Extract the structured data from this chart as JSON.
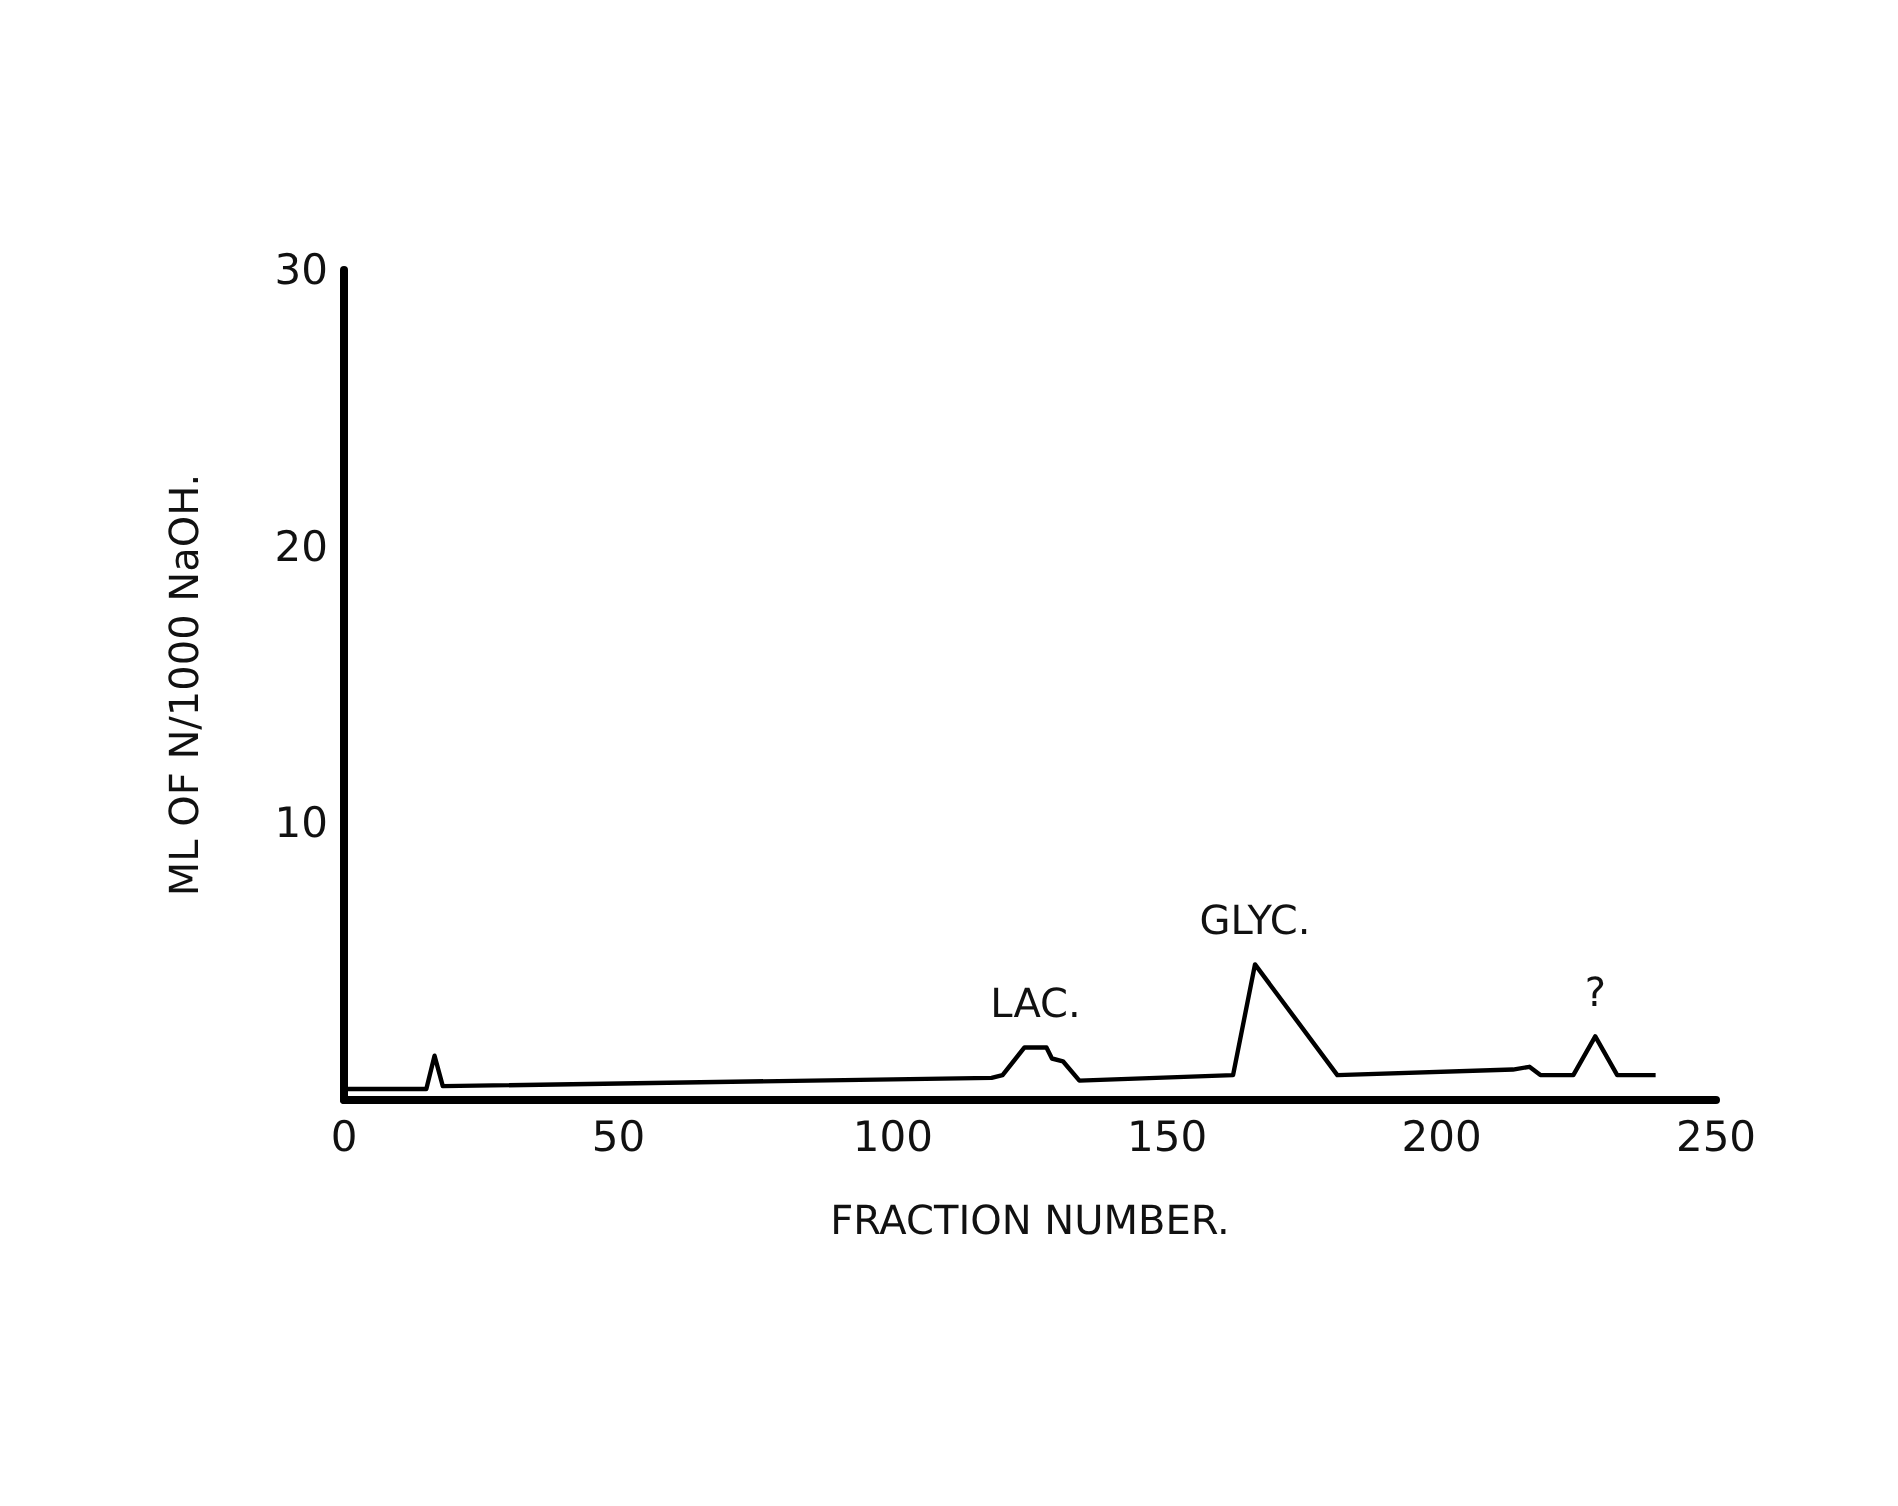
{
  "chart_data": {
    "type": "line",
    "xlabel": "FRACTION NUMBER.",
    "ylabel": "ML OF N/1000 NaOH.",
    "x": [
      0,
      15,
      16.5,
      18,
      118,
      120,
      124,
      128,
      129,
      131,
      134,
      162,
      166,
      181,
      213,
      216,
      218,
      224,
      228,
      232,
      239
    ],
    "series": [
      {
        "color": "#000000",
        "values": [
          0.4,
          0.4,
          1.6,
          0.5,
          0.8,
          0.9,
          1.9,
          1.9,
          1.5,
          1.4,
          0.7,
          0.9,
          4.9,
          0.9,
          1.1,
          1.2,
          0.9,
          0.9,
          2.3,
          0.9,
          0.9
        ]
      }
    ],
    "xlim": [
      0,
      250
    ],
    "xticks": [
      0,
      50,
      100,
      150,
      200,
      250
    ],
    "ylim": [
      0,
      30
    ],
    "yticks": [
      10,
      20,
      30
    ],
    "annotations": [
      {
        "text": "LAC.",
        "x": 126,
        "y": 1.9
      },
      {
        "text": "GLYC.",
        "x": 166,
        "y": 4.9
      },
      {
        "text": "?",
        "x": 228,
        "y": 2.3
      }
    ],
    "marker": "none",
    "line_style": "solid"
  }
}
